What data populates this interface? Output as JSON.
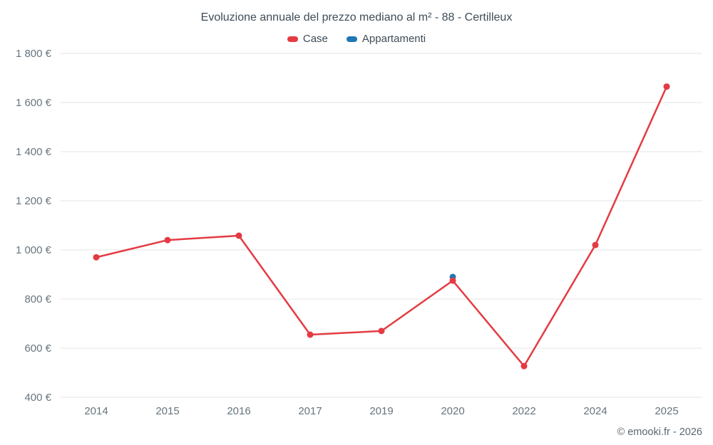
{
  "footer": "© emooki.fr - 2026",
  "chart_data": {
    "type": "line",
    "title": "Evoluzione annuale del prezzo mediano al m² - 88 - Certilleux",
    "categories": [
      "2014",
      "2015",
      "2016",
      "2017",
      "2019",
      "2020",
      "2022",
      "2024",
      "2025"
    ],
    "series": [
      {
        "name": "Case",
        "color": "#e43b43",
        "values": [
          970,
          1040,
          1058,
          655,
          670,
          875,
          527,
          1020,
          1665
        ]
      },
      {
        "name": "Appartamenti",
        "color": "#1f77b4",
        "values": [
          null,
          null,
          null,
          null,
          null,
          890,
          null,
          null,
          null
        ]
      }
    ],
    "ylim": [
      400,
      1800
    ],
    "ytick_step": 200,
    "ytick_suffix": " €",
    "grid": true,
    "gridline_color": "#e6e6e6",
    "legend_position": "top"
  }
}
